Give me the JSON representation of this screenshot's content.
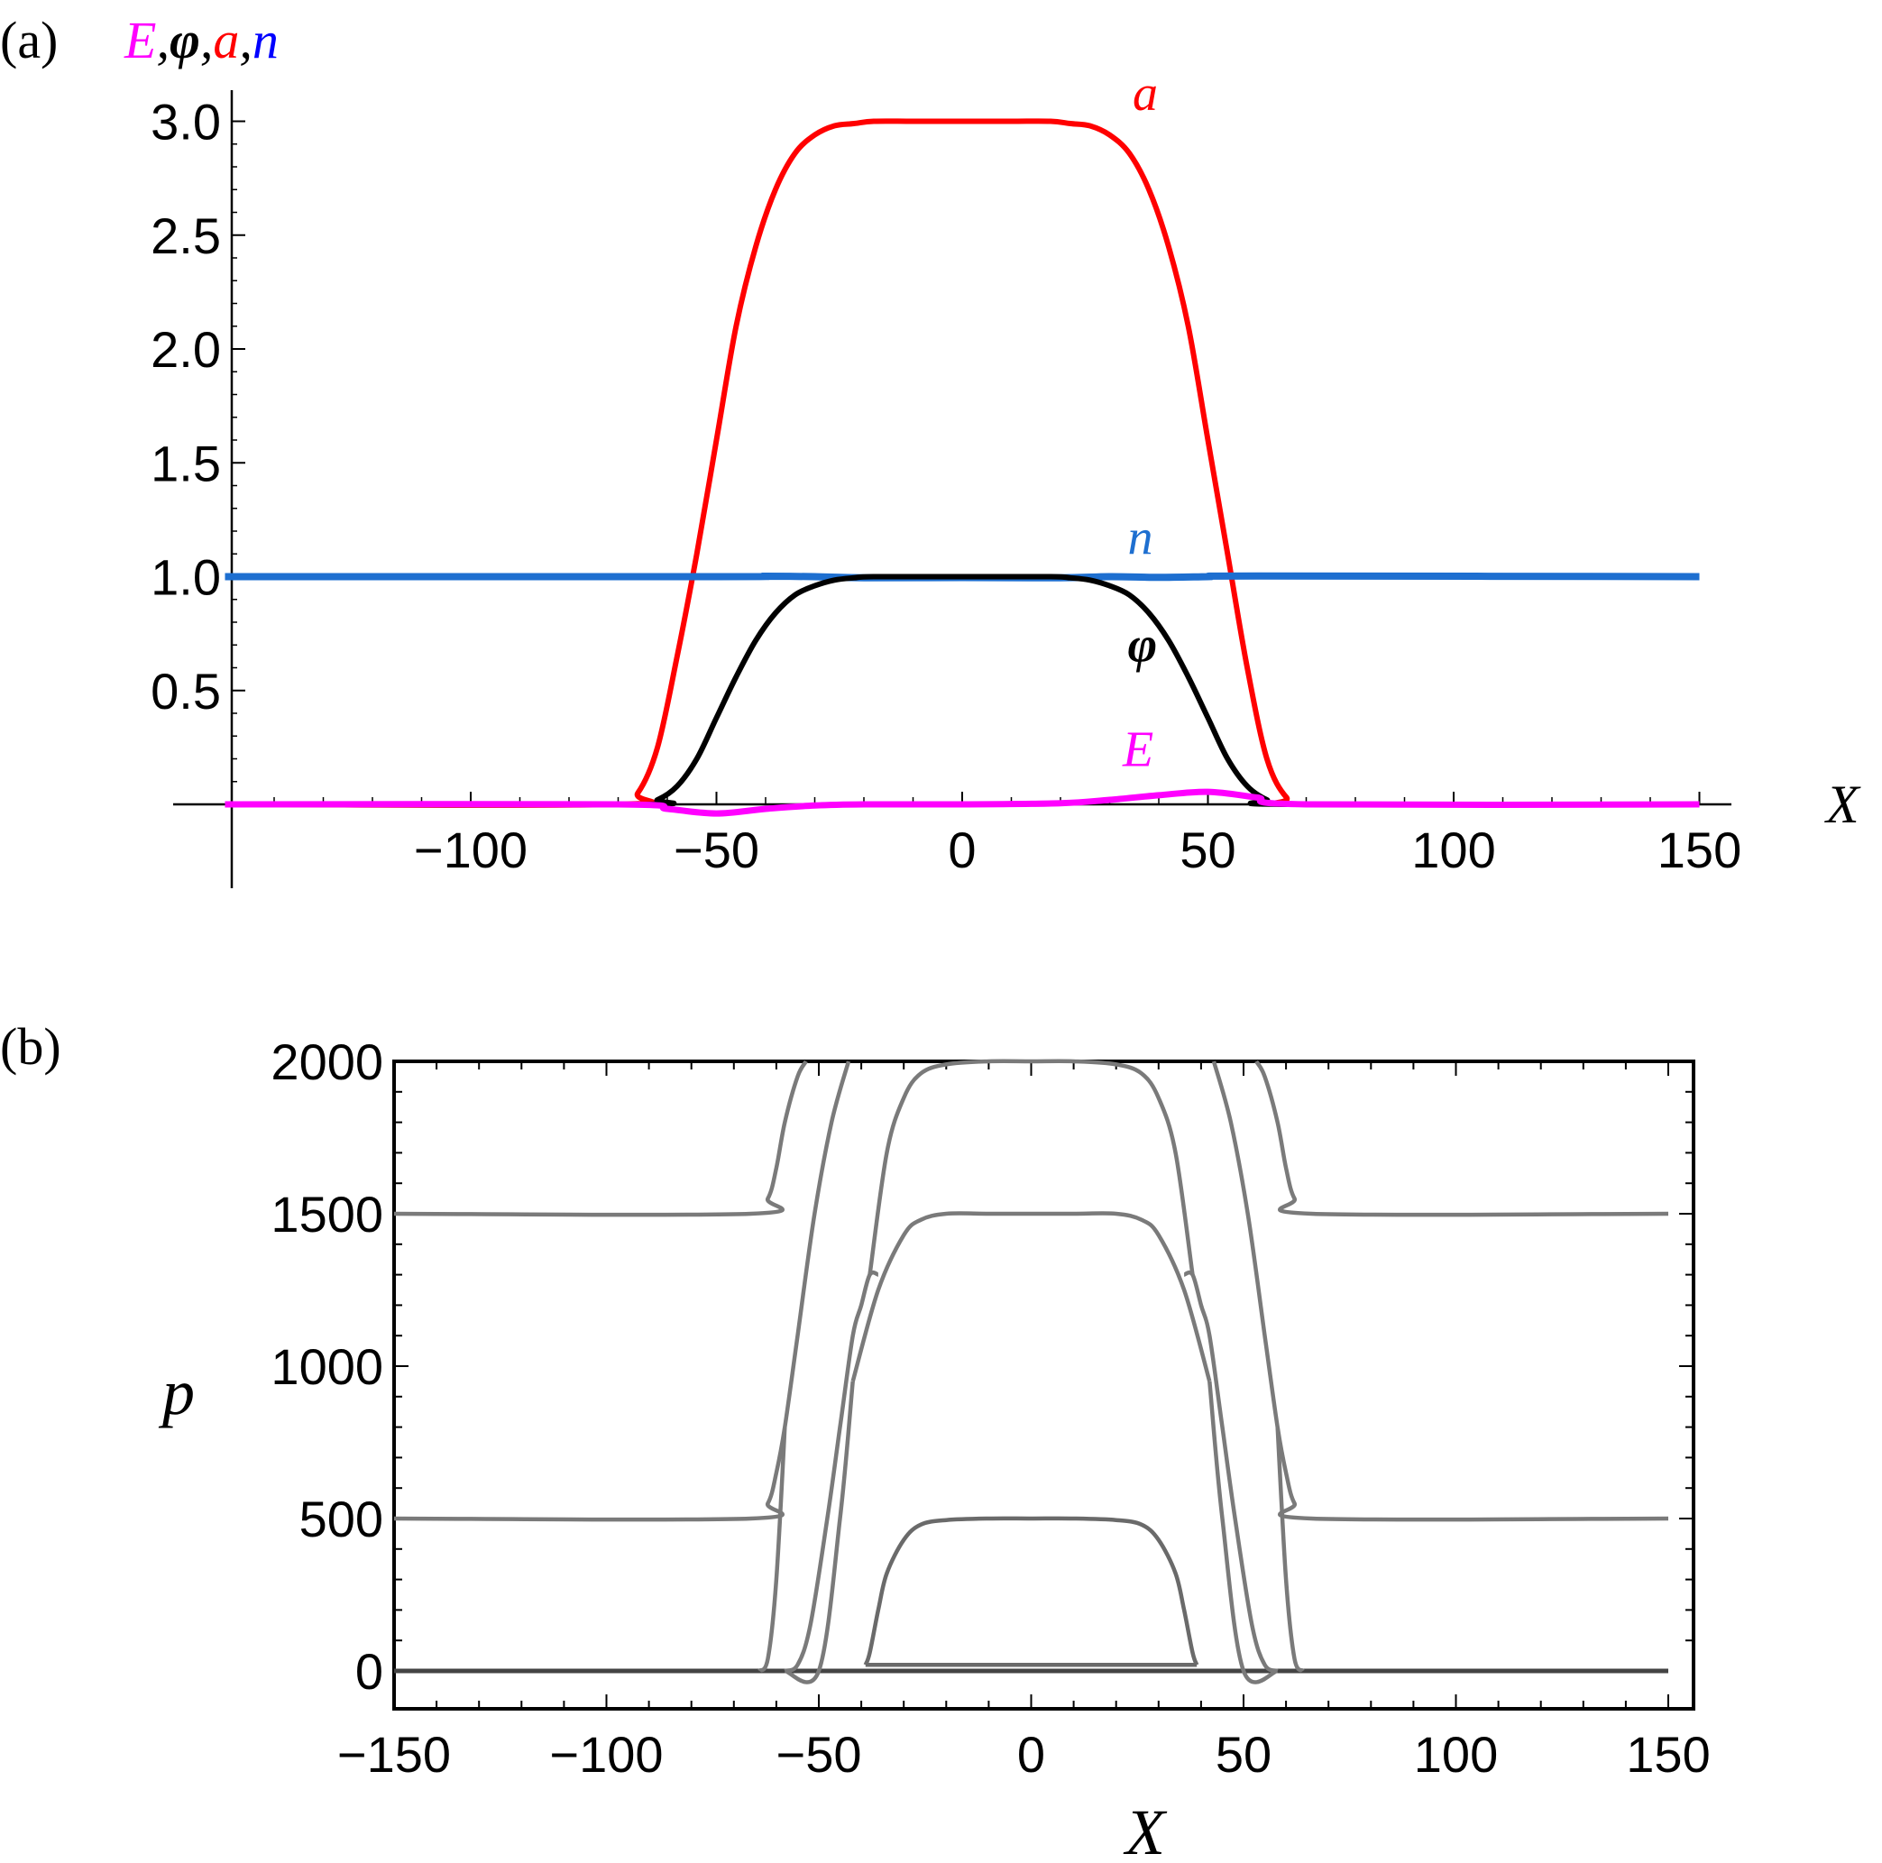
{
  "chart_data": [
    {
      "panel_label": "(a)",
      "type": "line",
      "xlabel": "X",
      "ylabel_parts": [
        {
          "text": "E",
          "color": "#ff00ff"
        },
        {
          "text": ",",
          "color": "#000000"
        },
        {
          "text": "φ",
          "color": "#000000"
        },
        {
          "text": ",",
          "color": "#000000"
        },
        {
          "text": "a",
          "color": "#ff0000"
        },
        {
          "text": ",",
          "color": "#000000"
        },
        {
          "text": "n",
          "color": "#0000ff"
        }
      ],
      "xlim": [
        -150,
        150
      ],
      "ylim": [
        -0.1,
        3.15
      ],
      "xticks": [
        -100,
        -50,
        0,
        50,
        100,
        150
      ],
      "xtick_labels": [
        "−100",
        "−50",
        "0",
        "50",
        "100",
        "150"
      ],
      "yticks": [
        0.5,
        1.0,
        1.5,
        2.0,
        2.5,
        3.0
      ],
      "ytick_labels": [
        "0.5",
        "1.0",
        "1.5",
        "2.0",
        "2.5",
        "3.0"
      ],
      "grid": false,
      "series": [
        {
          "name": "a",
          "label_x": 31,
          "label_y": 3.12,
          "color": "#ff0000",
          "x": [
            -150,
            -70,
            -66,
            -62,
            -58,
            -54,
            -50,
            -46,
            -42,
            -38,
            -34,
            -30,
            -26,
            -22,
            -18,
            -10,
            0,
            10,
            18,
            22,
            26,
            30,
            34,
            38,
            42,
            46,
            50,
            54,
            58,
            62,
            66,
            70,
            150
          ],
          "y": [
            0,
            0,
            0.05,
            0.25,
            0.65,
            1.1,
            1.6,
            2.1,
            2.45,
            2.7,
            2.86,
            2.94,
            2.98,
            2.99,
            3.0,
            3.0,
            3.0,
            3.0,
            3.0,
            2.99,
            2.98,
            2.94,
            2.86,
            2.7,
            2.45,
            2.1,
            1.6,
            1.1,
            0.6,
            0.2,
            0.03,
            0,
            0
          ]
        },
        {
          "name": "n",
          "label_x": 30,
          "label_y": 1.17,
          "color": "#1e6fd0",
          "x": [
            -150,
            -50,
            -40,
            -30,
            -20,
            0,
            20,
            30,
            40,
            50,
            60,
            150
          ],
          "y": [
            1.0,
            1.0,
            1.002,
            1.0,
            0.995,
            0.996,
            0.995,
            1.0,
            0.997,
            1.0,
            1.003,
            1.0
          ]
        },
        {
          "name": "φ",
          "label_x": 30,
          "label_y": 0.7,
          "color": "#000000",
          "x": [
            -150,
            -66,
            -62,
            -58,
            -54,
            -50,
            -46,
            -42,
            -38,
            -34,
            -30,
            -26,
            -22,
            -18,
            0,
            18,
            22,
            26,
            30,
            34,
            38,
            42,
            46,
            50,
            54,
            58,
            62,
            66,
            150
          ],
          "y": [
            0,
            0,
            0.02,
            0.08,
            0.2,
            0.38,
            0.56,
            0.72,
            0.84,
            0.92,
            0.96,
            0.985,
            0.995,
            1.0,
            1.0,
            1.0,
            0.995,
            0.985,
            0.96,
            0.92,
            0.84,
            0.72,
            0.56,
            0.38,
            0.2,
            0.08,
            0.02,
            0,
            0
          ]
        },
        {
          "name": "E",
          "label_x": 29,
          "label_y": 0.24,
          "color": "#ff00ff",
          "x": [
            -150,
            -70,
            -60,
            -50,
            -40,
            -30,
            -20,
            0,
            20,
            30,
            40,
            50,
            60,
            70,
            150
          ],
          "y": [
            0,
            0,
            -0.02,
            -0.04,
            -0.02,
            -0.005,
            0,
            0,
            0.005,
            0.02,
            0.04,
            0.055,
            0.03,
            0,
            0
          ]
        }
      ]
    },
    {
      "panel_label": "(b)",
      "type": "line",
      "xlabel": "X",
      "ylabel": "p",
      "xlim": [
        -150,
        150
      ],
      "ylim": [
        -100,
        2000
      ],
      "xticks": [
        -150,
        -100,
        -50,
        0,
        50,
        100,
        150
      ],
      "xtick_labels": [
        "−150",
        "−100",
        "−50",
        "0",
        "50",
        "100",
        "150"
      ],
      "yticks": [
        0,
        500,
        1000,
        1500,
        2000
      ],
      "ytick_labels": [
        "0",
        "500",
        "1000",
        "1500",
        "2000"
      ],
      "grid": false,
      "series": [
        {
          "color": "#444444",
          "x": [
            -150,
            150
          ],
          "y": [
            0,
            0
          ]
        },
        {
          "color": "#7a7a7a",
          "x": [
            -150,
            -66,
            -62,
            -60,
            -58,
            -55,
            -53
          ],
          "y": [
            1500,
            1500,
            1550,
            1650,
            1800,
            1950,
            2000
          ]
        },
        {
          "color": "#7a7a7a",
          "x": [
            53,
            55,
            58,
            60,
            62,
            66,
            150
          ],
          "y": [
            2000,
            1950,
            1800,
            1650,
            1550,
            1500,
            1500
          ]
        },
        {
          "color": "#7a7a7a",
          "x": [
            -150,
            -66,
            -62,
            -60,
            -58,
            -55,
            -51,
            -47,
            -43
          ],
          "y": [
            500,
            500,
            550,
            650,
            800,
            1100,
            1500,
            1800,
            2000
          ]
        },
        {
          "color": "#7a7a7a",
          "x": [
            43,
            47,
            51,
            55,
            58,
            60,
            62,
            66,
            150
          ],
          "y": [
            2000,
            1800,
            1500,
            1100,
            800,
            650,
            550,
            500,
            500
          ]
        },
        {
          "color": "#7a7a7a",
          "x": [
            -38,
            -34,
            -30,
            -26,
            -20,
            -10,
            0,
            10,
            20,
            26,
            30,
            34,
            38
          ],
          "y": [
            1300,
            1700,
            1880,
            1960,
            1990,
            2000,
            2000,
            2000,
            1990,
            1960,
            1880,
            1700,
            1300
          ]
        },
        {
          "color": "#7a7a7a",
          "x": [
            -42,
            -36,
            -30,
            -26,
            -20,
            -10,
            0,
            10,
            20,
            26,
            30,
            36,
            42
          ],
          "y": [
            950,
            1250,
            1430,
            1480,
            1500,
            1500,
            1500,
            1500,
            1500,
            1480,
            1430,
            1250,
            950
          ]
        },
        {
          "color": "#7a7a7a",
          "x": [
            -58,
            -55,
            -52,
            -48,
            -45,
            -42,
            -40,
            -38,
            -36
          ],
          "y": [
            0,
            20,
            150,
            500,
            800,
            1100,
            1200,
            1300,
            1300
          ]
        },
        {
          "color": "#7a7a7a",
          "x": [
            36,
            38,
            40,
            42,
            45,
            48,
            52,
            55,
            58
          ],
          "y": [
            1300,
            1300,
            1200,
            1100,
            800,
            500,
            150,
            20,
            0
          ]
        },
        {
          "color": "#7a7a7a",
          "x": [
            -58,
            -50,
            -45,
            -42
          ],
          "y": [
            0,
            0,
            500,
            950
          ]
        },
        {
          "color": "#7a7a7a",
          "x": [
            42,
            45,
            50,
            58
          ],
          "y": [
            950,
            500,
            0,
            0
          ]
        },
        {
          "color": "#7a7a7a",
          "x": [
            -64,
            -62,
            -60,
            -58
          ],
          "y": [
            0,
            40,
            300,
            800
          ]
        },
        {
          "color": "#7a7a7a",
          "x": [
            58,
            60,
            62,
            64
          ],
          "y": [
            800,
            300,
            40,
            0
          ]
        },
        {
          "color": "#6a6a6a",
          "x": [
            -39,
            -38,
            -36,
            -34,
            -30,
            -26,
            -20,
            -10,
            0,
            10,
            20,
            26,
            30,
            34,
            36,
            38,
            39
          ],
          "y": [
            20,
            60,
            200,
            320,
            430,
            480,
            495,
            500,
            500,
            500,
            495,
            480,
            430,
            320,
            200,
            60,
            20
          ]
        },
        {
          "color": "#6a6a6a",
          "x": [
            -39,
            39
          ],
          "y": [
            20,
            20
          ]
        }
      ]
    }
  ]
}
